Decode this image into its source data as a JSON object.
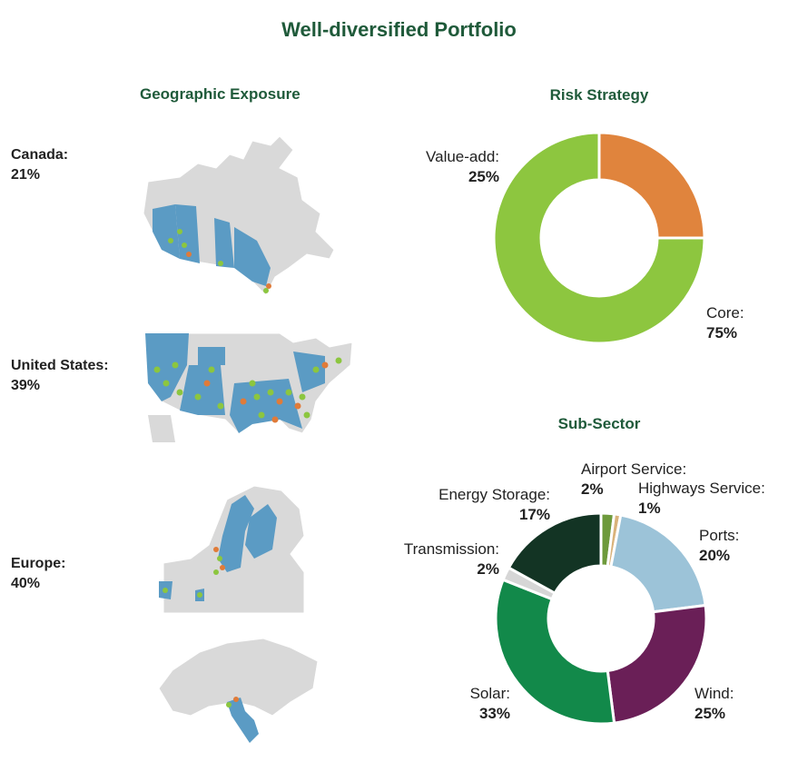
{
  "title": "Well-diversified Portfolio",
  "geo": {
    "heading": "Geographic Exposure",
    "regions": [
      {
        "name": "Canada:",
        "pct": "21%"
      },
      {
        "name": "United States:",
        "pct": "39%"
      },
      {
        "name": "Europe:",
        "pct": "40%"
      }
    ]
  },
  "colors": {
    "title": "#1f5a3a",
    "map_land": "#d9d9d9",
    "map_highlight": "#5b9bc4",
    "asset_green": "#8cc63f",
    "asset_orange": "#e07b39"
  },
  "chart_data": [
    {
      "type": "pie",
      "title": "Risk Strategy",
      "donut": true,
      "labels": [
        "Value-add:",
        "Core:"
      ],
      "values": [
        25,
        75
      ],
      "value_labels": [
        "25%",
        "75%"
      ],
      "colors": [
        "#e0843d",
        "#8dc63f"
      ]
    },
    {
      "type": "pie",
      "title": "Sub-Sector",
      "donut": true,
      "labels": [
        "Airport Service:",
        "Highways Service:",
        "Ports:",
        "Wind:",
        "Solar:",
        "Transmission:",
        "Energy Storage:"
      ],
      "values": [
        2,
        1,
        20,
        25,
        33,
        2,
        17
      ],
      "value_labels": [
        "2%",
        "1%",
        "20%",
        "25%",
        "33%",
        "2%",
        "17%"
      ],
      "colors": [
        "#6e9a3c",
        "#d9b27a",
        "#9cc3d8",
        "#6a1f57",
        "#12894a",
        "#d6d6d6",
        "#133424"
      ]
    }
  ]
}
